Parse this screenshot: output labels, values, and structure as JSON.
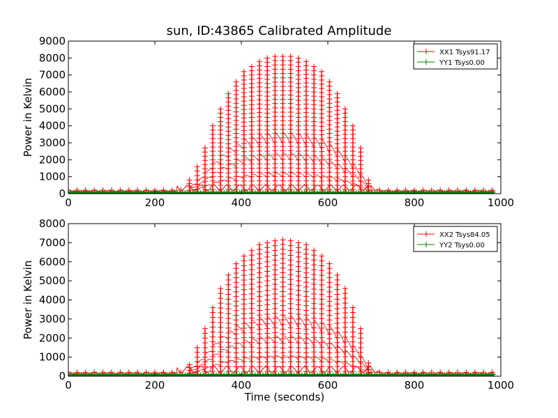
{
  "figure": {
    "title": "sun, ID:43865 Calibrated Amplitude",
    "xlabel": "Time (seconds)",
    "colors": {
      "xx": "#ff0000",
      "yy": "#008000",
      "axes": "#000000",
      "legend_border": "#000000"
    }
  },
  "chart_data": [
    {
      "type": "line",
      "title": "sun, ID:43865 Calibrated Amplitude",
      "xlabel": "",
      "ylabel": "Power in Kelvin",
      "xlim": [
        0,
        1000
      ],
      "ylim": [
        0,
        9000
      ],
      "xticks": [
        "0",
        "200",
        "400",
        "600",
        "800",
        "1000"
      ],
      "yticks": [
        "0",
        "1000",
        "2000",
        "3000",
        "4000",
        "5000",
        "6000",
        "7000",
        "8000",
        "9000"
      ],
      "legend_position": "top-right",
      "grid": false,
      "series": [
        {
          "name": "XX1 Tsys91.17",
          "color": "#ff0000",
          "marker": "+",
          "baseline": 150,
          "peaks": {
            "x": [
              280,
              298,
              316,
              334,
              352,
              370,
              388,
              406,
              424,
              442,
              460,
              478,
              496,
              514,
              532,
              550,
              568,
              586,
              604,
              622,
              640,
              658,
              676,
              694
            ],
            "y": [
              800,
              1600,
              2700,
              4000,
              5000,
              5900,
              6600,
              7200,
              7500,
              7800,
              8000,
              8100,
              8100,
              8100,
              8000,
              7800,
              7500,
              7200,
              6600,
              5900,
              5000,
              4000,
              2700,
              800
            ]
          }
        },
        {
          "name": "YY1 Tsys0.00",
          "color": "#008000",
          "marker": "+",
          "baseline": 80
        }
      ]
    },
    {
      "type": "line",
      "title": "",
      "xlabel": "Time (seconds)",
      "ylabel": "Power in Kelvin",
      "xlim": [
        0,
        1000
      ],
      "ylim": [
        0,
        8000
      ],
      "xticks": [
        "0",
        "200",
        "400",
        "600",
        "800",
        "1000"
      ],
      "yticks": [
        "0",
        "1000",
        "2000",
        "3000",
        "4000",
        "5000",
        "6000",
        "7000",
        "8000"
      ],
      "legend_position": "top-right",
      "grid": false,
      "series": [
        {
          "name": "XX2 Tsys84.05",
          "color": "#ff0000",
          "marker": "+",
          "baseline": 150,
          "peaks": {
            "x": [
              280,
              298,
              316,
              334,
              352,
              370,
              388,
              406,
              424,
              442,
              460,
              478,
              496,
              514,
              532,
              550,
              568,
              586,
              604,
              622,
              640,
              658,
              676,
              694
            ],
            "y": [
              600,
              1500,
              2500,
              3600,
              4600,
              5300,
              5900,
              6300,
              6600,
              6900,
              7000,
              7100,
              7150,
              7100,
              7000,
              6900,
              6600,
              6300,
              5900,
              5300,
              4600,
              3600,
              2500,
              700
            ]
          }
        },
        {
          "name": "YY2 Tsys0.00",
          "color": "#008000",
          "marker": "+",
          "baseline": 80
        }
      ]
    }
  ]
}
